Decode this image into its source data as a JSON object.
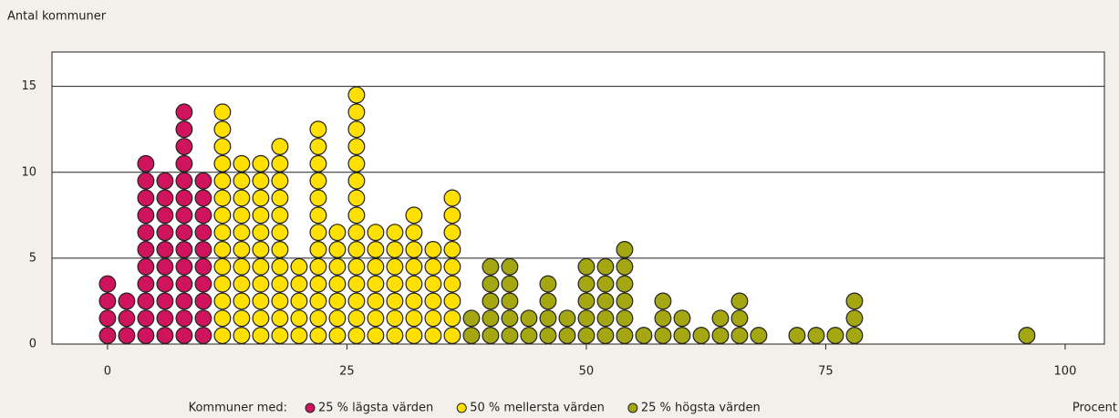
{
  "chart_data": {
    "type": "dot",
    "y_label": "Antal kommuner",
    "x_label": "Procent",
    "legend_title": "Kommuner med:",
    "xlim": [
      -5.8,
      104.1
    ],
    "xticks": [
      0,
      25,
      50,
      75,
      100
    ],
    "ylim": [
      0,
      17
    ],
    "yticks": [
      0,
      5,
      10,
      15
    ],
    "grid": true,
    "series": [
      {
        "name": "25 % lägsta värden",
        "color": "#d0135d",
        "x": [
          0,
          2,
          4,
          6,
          8,
          10
        ],
        "values": [
          4,
          3,
          11,
          10,
          14,
          10
        ]
      },
      {
        "name": "50 % mellersta värden",
        "color": "#ffe000",
        "x": [
          12,
          14,
          16,
          18,
          20,
          22,
          24,
          26,
          28,
          30,
          32,
          34,
          36
        ],
        "values": [
          14,
          11,
          11,
          12,
          5,
          13,
          7,
          15,
          7,
          7,
          8,
          6,
          9
        ]
      },
      {
        "name": "25 % högsta värden",
        "color": "#a4a612",
        "x": [
          38,
          40,
          42,
          44,
          46,
          48,
          50,
          52,
          54,
          56,
          58,
          60,
          62,
          64,
          66,
          68,
          72,
          74,
          76,
          78,
          96
        ],
        "values": [
          2,
          5,
          5,
          2,
          4,
          2,
          5,
          5,
          6,
          1,
          3,
          2,
          1,
          2,
          3,
          1,
          1,
          1,
          1,
          3,
          1
        ]
      }
    ]
  }
}
